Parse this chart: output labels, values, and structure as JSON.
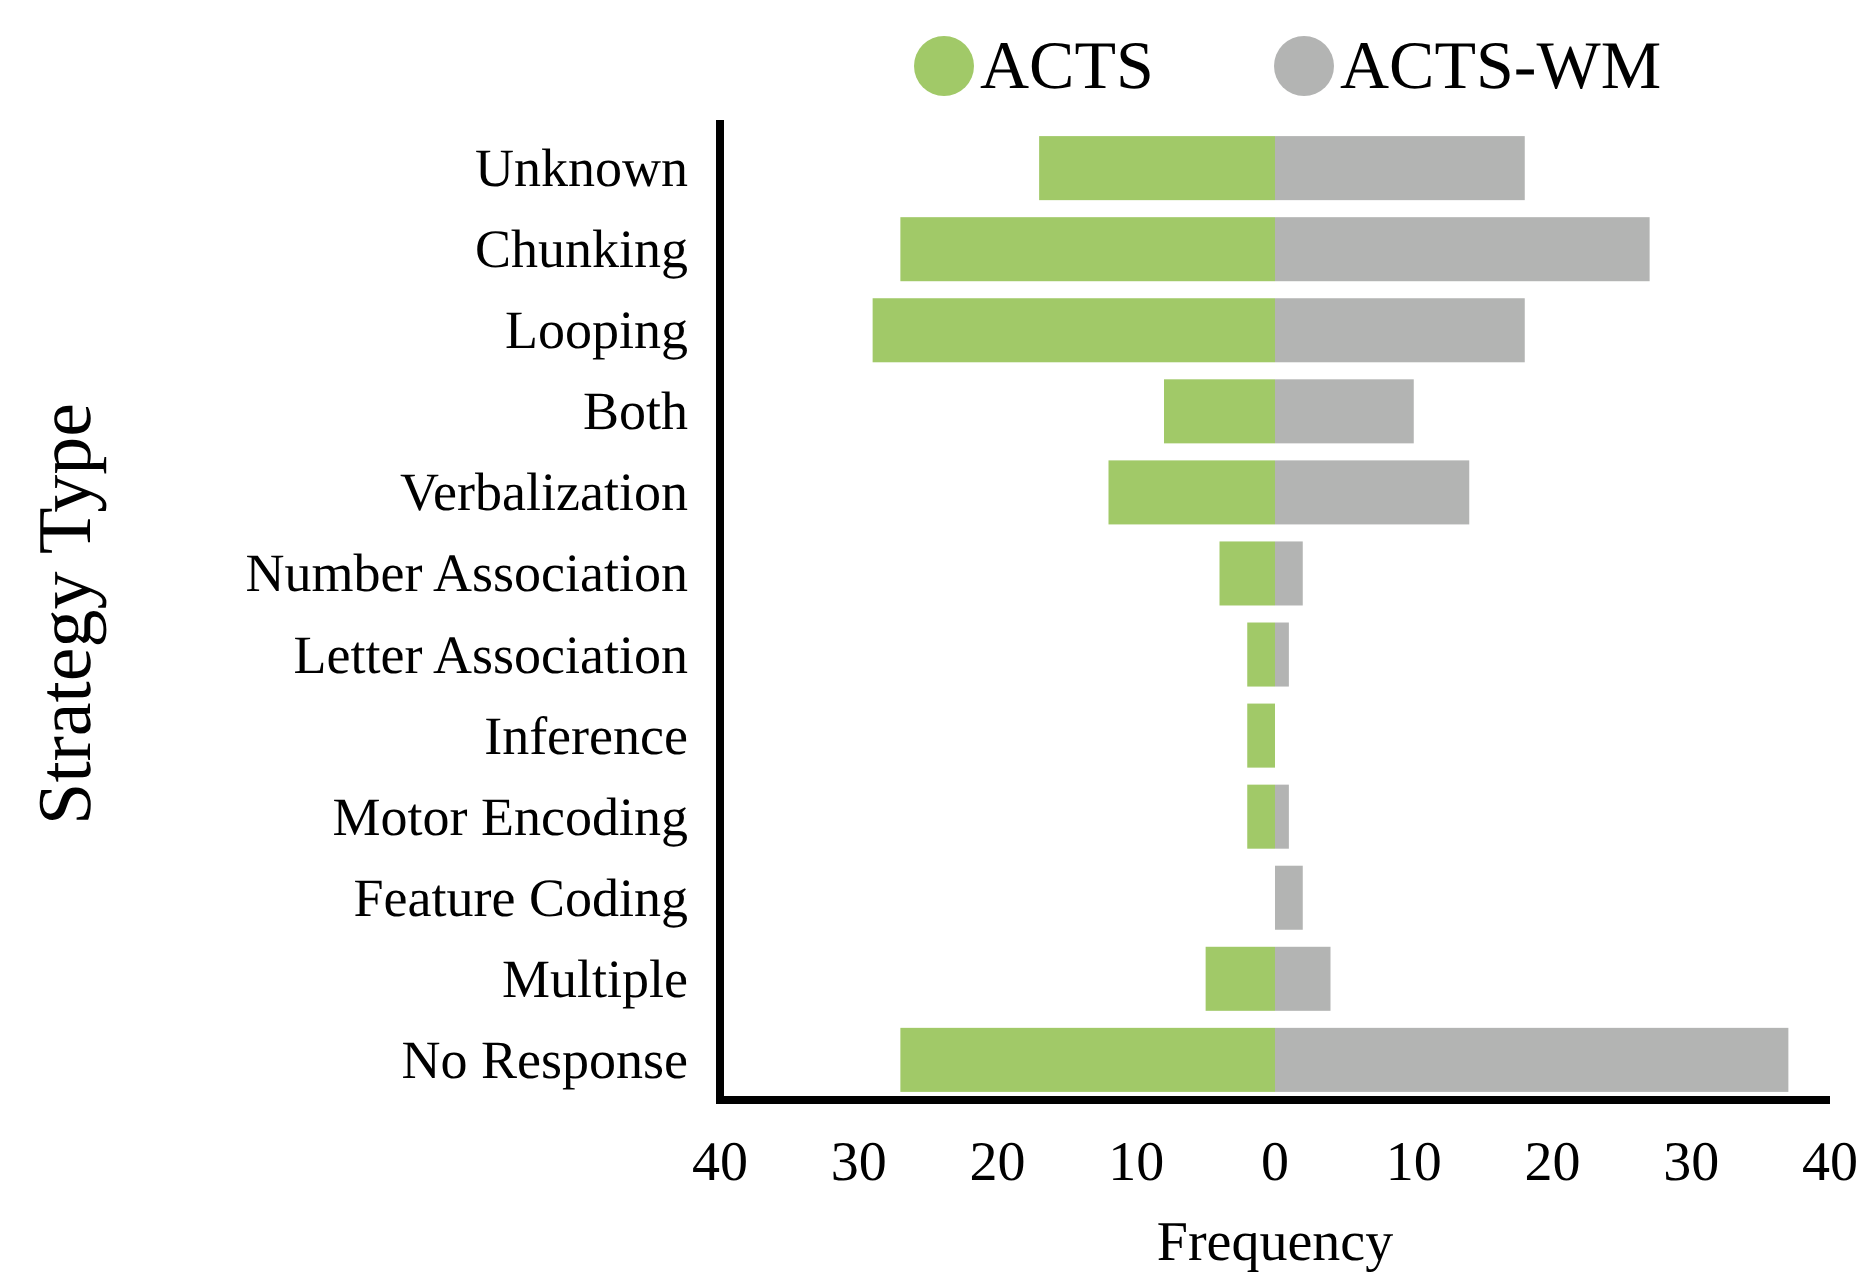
{
  "chart_data": {
    "type": "bar",
    "orientation": "horizontal",
    "stacked": true,
    "xlabel": "Frequency",
    "ylabel": "Strategy Type",
    "categories": [
      "Unknown",
      "Chunking",
      "Looping",
      "Both",
      "Verbalization",
      "Number Association",
      "Letter Association",
      "Inference",
      "Motor Encoding",
      "Feature Coding",
      "Multiple",
      "No Response"
    ],
    "series": [
      {
        "name": "ACTS",
        "color": "#a1c968",
        "values": [
          -17,
          -27,
          -29,
          -8,
          -12,
          -4,
          -2,
          -2,
          -2,
          0,
          -5,
          -27
        ]
      },
      {
        "name": "ACTS-WM",
        "color": "#b3b4b3",
        "values": [
          18,
          27,
          18,
          10,
          14,
          2,
          1,
          0,
          1,
          2,
          4,
          37
        ]
      }
    ],
    "xlim": [
      -40,
      40
    ],
    "xticks": [
      {
        "value": -40,
        "label": "40"
      },
      {
        "value": -30,
        "label": "30"
      },
      {
        "value": -20,
        "label": "20"
      },
      {
        "value": -10,
        "label": "10"
      },
      0,
      10,
      20,
      30,
      40
    ],
    "legend": "top right",
    "grid": false
  }
}
